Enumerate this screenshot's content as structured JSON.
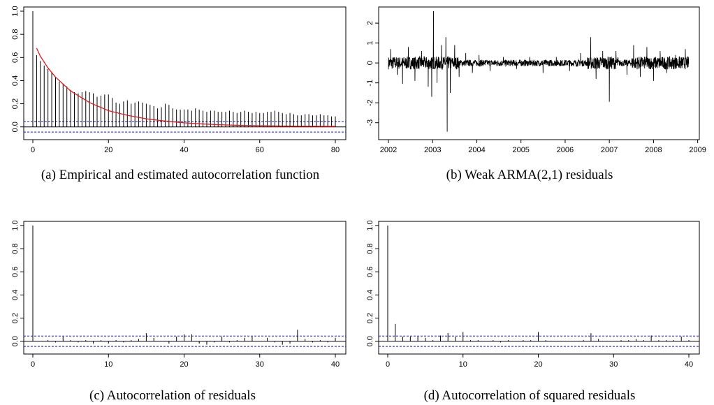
{
  "chart_data": [
    {
      "id": "a",
      "type": "bar",
      "caption": "(a)  Empirical and estimated autocorrelation function",
      "xlim": [
        0,
        80
      ],
      "ylim": [
        -0.05,
        1.0
      ],
      "xticks": [
        0,
        20,
        40,
        60,
        80
      ],
      "yticks": [
        0.0,
        0.2,
        0.4,
        0.6,
        0.8,
        1.0
      ],
      "conf_band": 0.045,
      "lags": [
        0,
        1,
        2,
        3,
        4,
        5,
        6,
        7,
        8,
        9,
        10,
        11,
        12,
        13,
        14,
        15,
        16,
        17,
        18,
        19,
        20,
        21,
        22,
        23,
        24,
        25,
        26,
        27,
        28,
        29,
        30,
        31,
        32,
        33,
        34,
        35,
        36,
        37,
        38,
        39,
        40,
        41,
        42,
        43,
        44,
        45,
        46,
        47,
        48,
        49,
        50,
        51,
        52,
        53,
        54,
        55,
        56,
        57,
        58,
        59,
        60,
        61,
        62,
        63,
        64,
        65,
        66,
        67,
        68,
        69,
        70,
        71,
        72,
        73,
        74,
        75,
        76,
        77,
        78,
        79,
        80
      ],
      "values": [
        1.0,
        0.62,
        0.57,
        0.53,
        0.5,
        0.47,
        0.43,
        0.39,
        0.37,
        0.35,
        0.32,
        0.3,
        0.29,
        0.3,
        0.31,
        0.3,
        0.29,
        0.26,
        0.27,
        0.28,
        0.28,
        0.25,
        0.21,
        0.2,
        0.22,
        0.23,
        0.2,
        0.21,
        0.22,
        0.21,
        0.2,
        0.19,
        0.18,
        0.16,
        0.17,
        0.2,
        0.19,
        0.16,
        0.15,
        0.15,
        0.15,
        0.15,
        0.14,
        0.16,
        0.15,
        0.14,
        0.13,
        0.14,
        0.14,
        0.13,
        0.13,
        0.13,
        0.14,
        0.13,
        0.12,
        0.13,
        0.14,
        0.13,
        0.12,
        0.13,
        0.12,
        0.12,
        0.13,
        0.13,
        0.14,
        0.13,
        0.12,
        0.11,
        0.12,
        0.11,
        0.1,
        0.1,
        0.11,
        0.11,
        0.1,
        0.1,
        0.11,
        0.1,
        0.1,
        0.09,
        0.09
      ],
      "fitted": {
        "lags": [
          1,
          2,
          3,
          4,
          5,
          6,
          8,
          10,
          12,
          15,
          20,
          25,
          30,
          35,
          40,
          45,
          50,
          55,
          60,
          65,
          70,
          75,
          80
        ],
        "values": [
          0.68,
          0.61,
          0.56,
          0.51,
          0.47,
          0.43,
          0.37,
          0.31,
          0.27,
          0.21,
          0.14,
          0.1,
          0.07,
          0.05,
          0.035,
          0.025,
          0.018,
          0.013,
          0.01,
          0.008,
          0.006,
          0.005,
          0.004
        ],
        "color": "#e31a1c"
      }
    },
    {
      "id": "b",
      "type": "line",
      "caption": "(b)  Weak ARMA(2,1) residuals",
      "xlim": [
        2002.0,
        2008.8
      ],
      "ylim": [
        -3.5,
        2.6
      ],
      "xticks": [
        2002,
        2003,
        2004,
        2005,
        2006,
        2007,
        2008,
        2009
      ],
      "yticks": [
        -3,
        -2,
        -1,
        0,
        1,
        2
      ],
      "spikes": [
        {
          "x": 2002.05,
          "y": 0.7
        },
        {
          "x": 2002.2,
          "y": -0.6
        },
        {
          "x": 2002.32,
          "y": -1.05
        },
        {
          "x": 2002.45,
          "y": 0.8
        },
        {
          "x": 2002.6,
          "y": -0.9
        },
        {
          "x": 2002.75,
          "y": 0.6
        },
        {
          "x": 2002.9,
          "y": -1.2
        },
        {
          "x": 2002.98,
          "y": -1.7
        },
        {
          "x": 2003.02,
          "y": 2.6
        },
        {
          "x": 2003.1,
          "y": -1.0
        },
        {
          "x": 2003.2,
          "y": 0.9
        },
        {
          "x": 2003.3,
          "y": 1.3
        },
        {
          "x": 2003.33,
          "y": -3.45
        },
        {
          "x": 2003.4,
          "y": -1.5
        },
        {
          "x": 2003.5,
          "y": 0.9
        },
        {
          "x": 2003.6,
          "y": -0.7
        },
        {
          "x": 2003.75,
          "y": 0.5
        },
        {
          "x": 2003.9,
          "y": -0.5
        },
        {
          "x": 2004.05,
          "y": 0.4
        },
        {
          "x": 2004.3,
          "y": -0.4
        },
        {
          "x": 2004.6,
          "y": 0.3
        },
        {
          "x": 2004.9,
          "y": -0.3
        },
        {
          "x": 2005.2,
          "y": 0.3
        },
        {
          "x": 2005.5,
          "y": -0.5
        },
        {
          "x": 2005.8,
          "y": 0.3
        },
        {
          "x": 2006.1,
          "y": -0.4
        },
        {
          "x": 2006.35,
          "y": 0.5
        },
        {
          "x": 2006.58,
          "y": 1.3
        },
        {
          "x": 2006.7,
          "y": -0.8
        },
        {
          "x": 2006.85,
          "y": 0.6
        },
        {
          "x": 2007.0,
          "y": -1.95
        },
        {
          "x": 2007.15,
          "y": 0.6
        },
        {
          "x": 2007.4,
          "y": -0.6
        },
        {
          "x": 2007.55,
          "y": 0.9
        },
        {
          "x": 2007.7,
          "y": -0.7
        },
        {
          "x": 2007.85,
          "y": 0.8
        },
        {
          "x": 2008.0,
          "y": -0.9
        },
        {
          "x": 2008.15,
          "y": 0.6
        },
        {
          "x": 2008.3,
          "y": -0.5
        },
        {
          "x": 2008.5,
          "y": 0.4
        },
        {
          "x": 2008.72,
          "y": 0.7
        }
      ]
    },
    {
      "id": "c",
      "type": "bar",
      "caption": "(c)  Autocorrelation of residuals",
      "xlim": [
        0,
        40
      ],
      "ylim": [
        -0.05,
        1.0
      ],
      "xticks": [
        0,
        10,
        20,
        30,
        40
      ],
      "yticks": [
        0.0,
        0.2,
        0.4,
        0.6,
        0.8,
        1.0
      ],
      "conf_band": 0.045,
      "lags": [
        0,
        1,
        2,
        3,
        4,
        5,
        6,
        7,
        8,
        9,
        10,
        11,
        12,
        13,
        14,
        15,
        16,
        17,
        18,
        19,
        20,
        21,
        22,
        23,
        24,
        25,
        26,
        27,
        28,
        29,
        30,
        31,
        32,
        33,
        34,
        35,
        36,
        37,
        38,
        39,
        40
      ],
      "values": [
        1.0,
        0.0,
        0.01,
        -0.01,
        0.04,
        0.01,
        -0.01,
        0.01,
        -0.02,
        0.01,
        -0.02,
        0.01,
        -0.01,
        0.01,
        0.02,
        0.07,
        0.03,
        0.0,
        -0.02,
        0.04,
        0.06,
        0.06,
        -0.02,
        -0.03,
        -0.01,
        0.04,
        -0.01,
        0.01,
        0.03,
        0.04,
        0.0,
        0.03,
        -0.01,
        -0.03,
        -0.02,
        0.1,
        0.02,
        -0.01,
        0.01,
        -0.01,
        0.03
      ]
    },
    {
      "id": "d",
      "type": "bar",
      "caption": "(d)  Autocorrelation of squared residuals",
      "xlim": [
        0,
        40
      ],
      "ylim": [
        -0.05,
        1.0
      ],
      "xticks": [
        0,
        10,
        20,
        30,
        40
      ],
      "yticks": [
        0.0,
        0.2,
        0.4,
        0.6,
        0.8,
        1.0
      ],
      "conf_band": 0.045,
      "lags": [
        0,
        1,
        2,
        3,
        4,
        5,
        6,
        7,
        8,
        9,
        10,
        11,
        12,
        13,
        14,
        15,
        16,
        17,
        18,
        19,
        20,
        21,
        22,
        23,
        24,
        25,
        26,
        27,
        28,
        29,
        30,
        31,
        32,
        33,
        34,
        35,
        36,
        37,
        38,
        39,
        40
      ],
      "values": [
        1.0,
        0.15,
        0.04,
        0.04,
        0.04,
        0.03,
        0.01,
        0.05,
        0.07,
        0.04,
        0.08,
        0.01,
        0.01,
        0.0,
        0.01,
        -0.01,
        0.01,
        0.0,
        0.01,
        0.01,
        0.08,
        0.01,
        0.0,
        0.0,
        0.0,
        0.0,
        0.01,
        0.07,
        0.02,
        0.0,
        0.0,
        0.01,
        0.01,
        0.02,
        0.01,
        0.05,
        0.01,
        0.01,
        0.01,
        0.04,
        0.01
      ]
    }
  ],
  "colors": {
    "axis": "#000000",
    "bars": "#000000",
    "band": "#1f1fb4",
    "fit": "#e31a1c"
  }
}
